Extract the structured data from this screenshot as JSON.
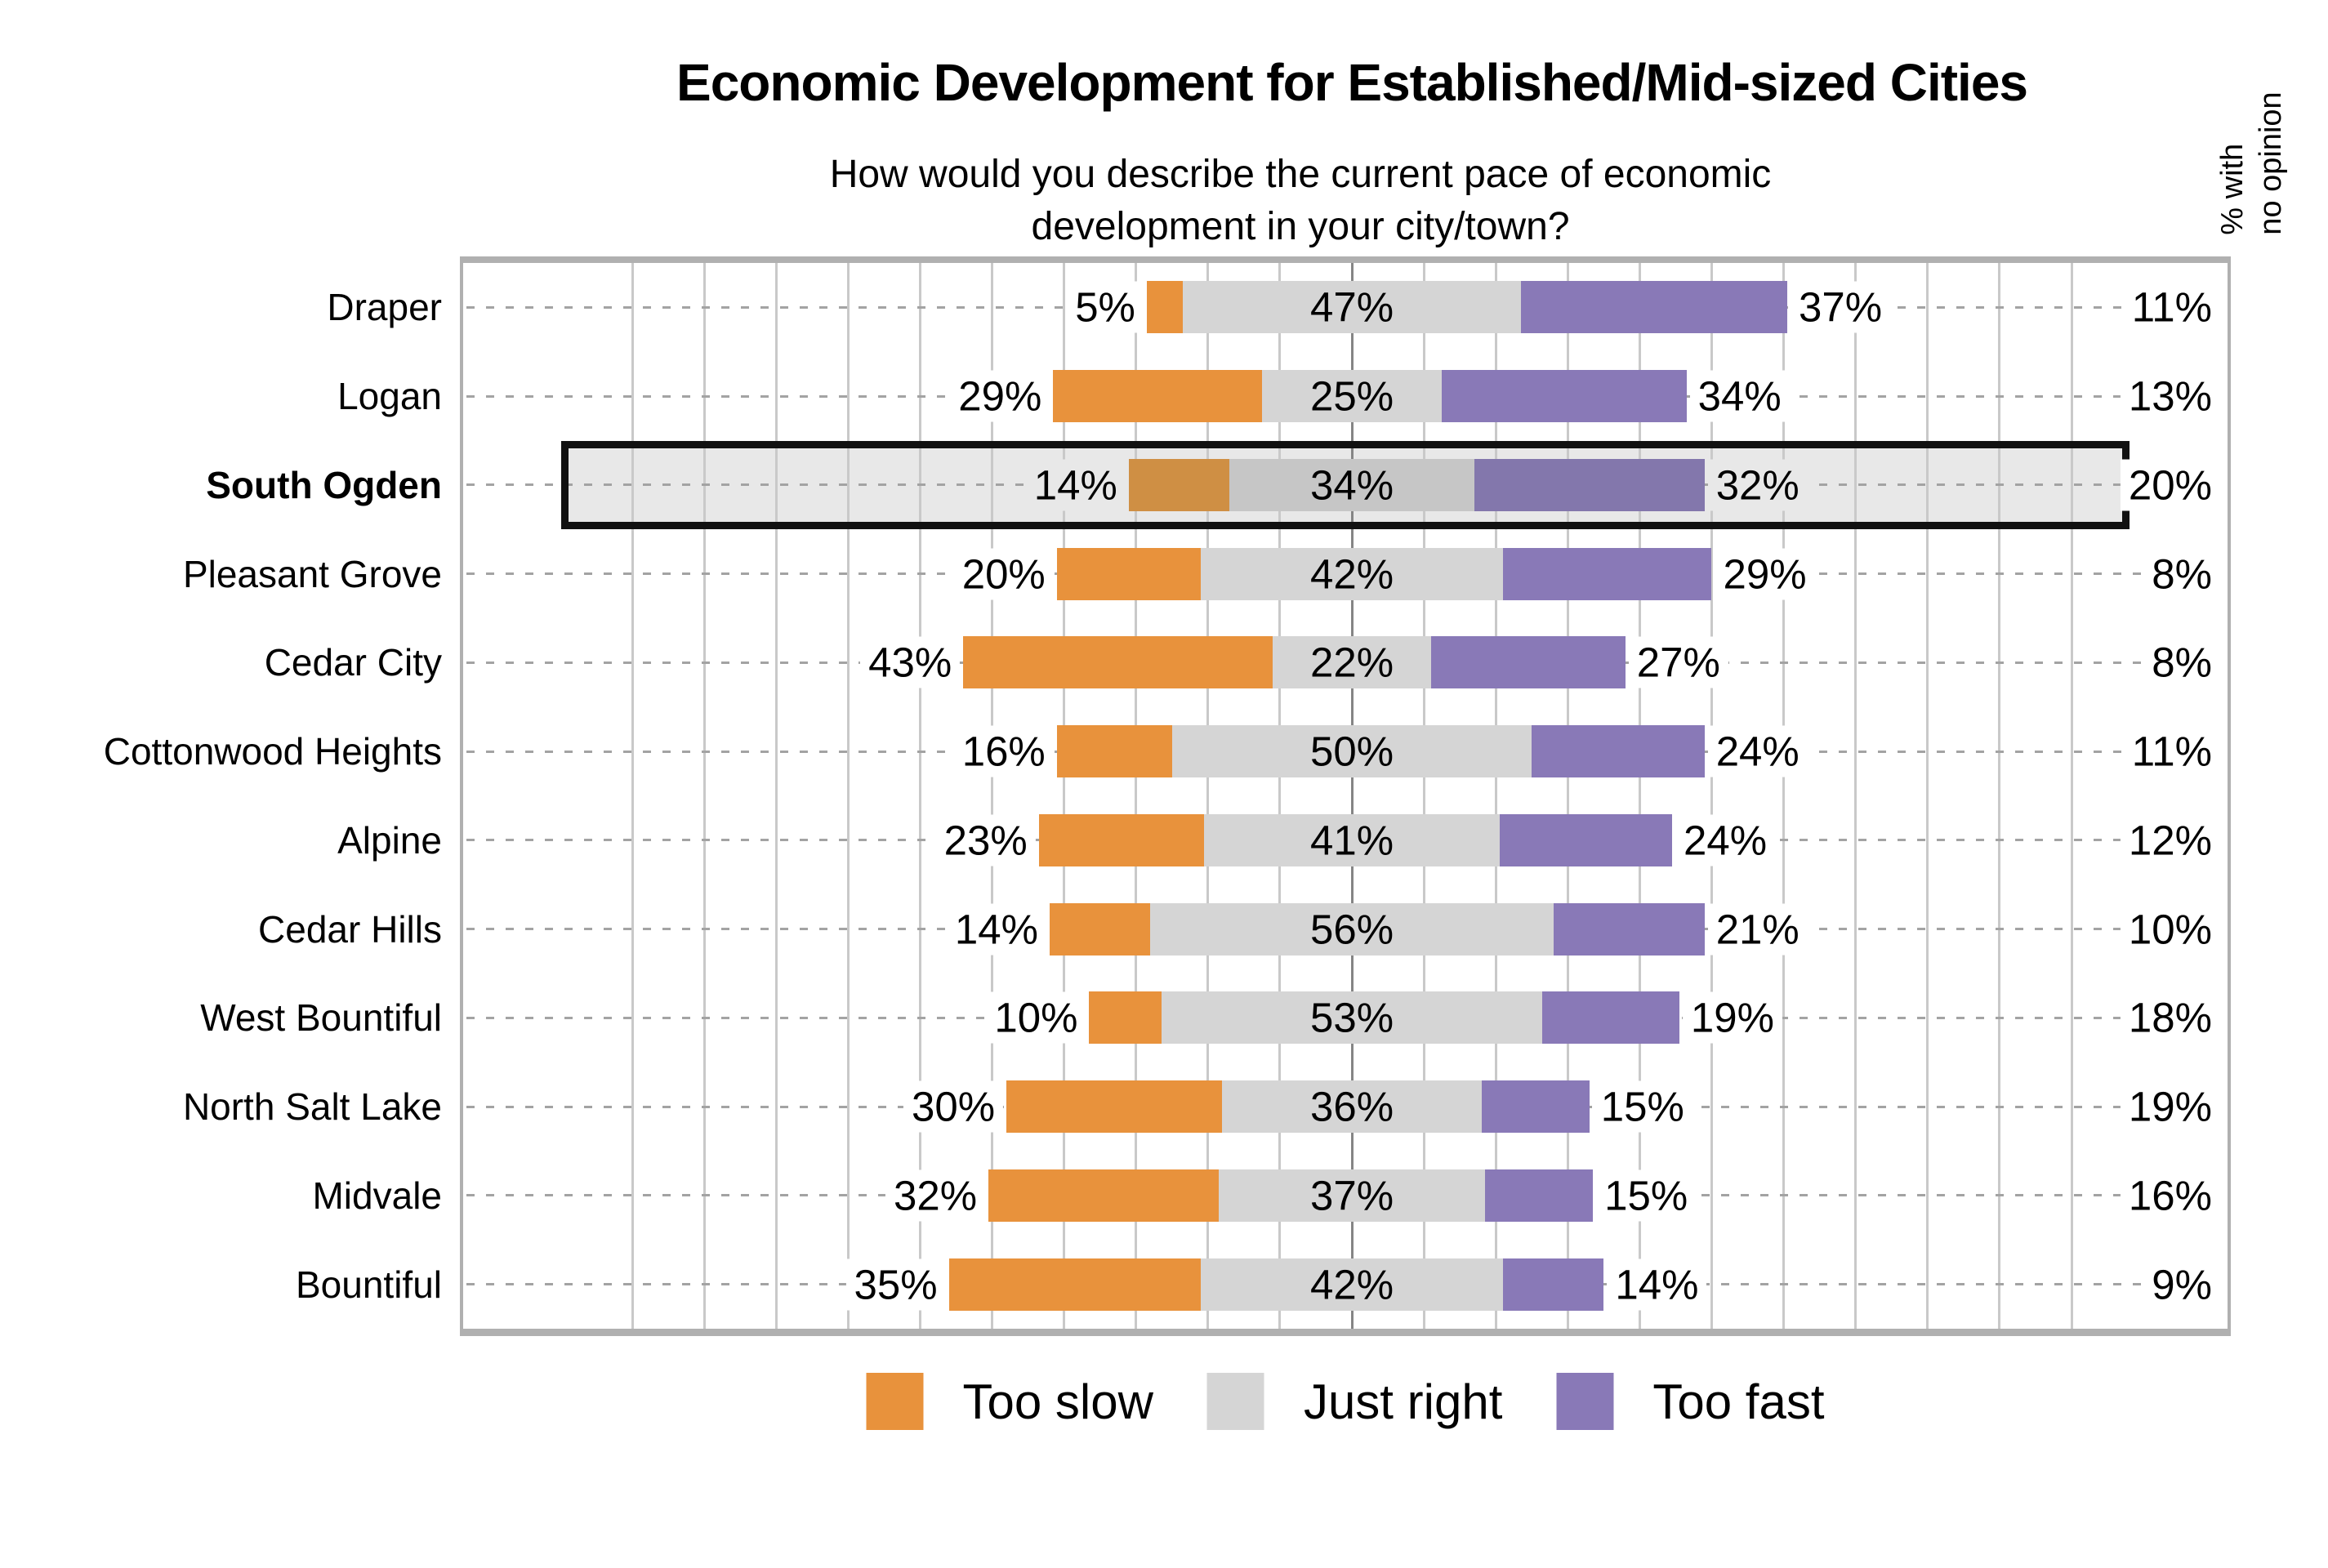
{
  "chart_data": {
    "type": "bar",
    "variant": "horizontal-diverging-stacked",
    "title": "Economic Development for Established/Mid-sized Cities",
    "subtitle_line1": "How would you describe the current pace of economic",
    "subtitle_line2": "development in your city/town?",
    "value_suffix": "%",
    "grid": {
      "interval_pct": 10,
      "range_pct": [
        -100,
        100
      ]
    },
    "legend_position": "bottom",
    "categories": [
      "Draper",
      "Logan",
      "South Ogden",
      "Pleasant Grove",
      "Cedar City",
      "Cottonwood Heights",
      "Alpine",
      "Cedar Hills",
      "West Bountiful",
      "North Salt Lake",
      "Midvale",
      "Bountiful"
    ],
    "series": [
      {
        "name": "Too slow",
        "color": "#E8923C",
        "highlight_color": "#CF8F44",
        "values": [
          5,
          29,
          14,
          20,
          43,
          16,
          23,
          14,
          10,
          30,
          32,
          35
        ]
      },
      {
        "name": "Just right",
        "color": "#D5D5D5",
        "highlight_color": "#C6C6C6",
        "values": [
          47,
          25,
          34,
          42,
          22,
          50,
          41,
          56,
          53,
          36,
          37,
          42
        ]
      },
      {
        "name": "Too fast",
        "color": "#8979B7",
        "highlight_color": "#8377AC",
        "values": [
          37,
          34,
          32,
          29,
          27,
          24,
          24,
          21,
          19,
          15,
          15,
          14
        ]
      }
    ],
    "no_opinion": {
      "header_line1": "% with",
      "header_line2": "no opinion",
      "values": [
        11,
        13,
        20,
        8,
        8,
        11,
        12,
        10,
        18,
        19,
        16,
        9
      ]
    },
    "highlight": {
      "category": "South Ogden",
      "band_color": "#E8E8E8",
      "border_color": "#111111"
    },
    "gridline_color": "#C9C9C9",
    "center_line_color": "#858585"
  }
}
